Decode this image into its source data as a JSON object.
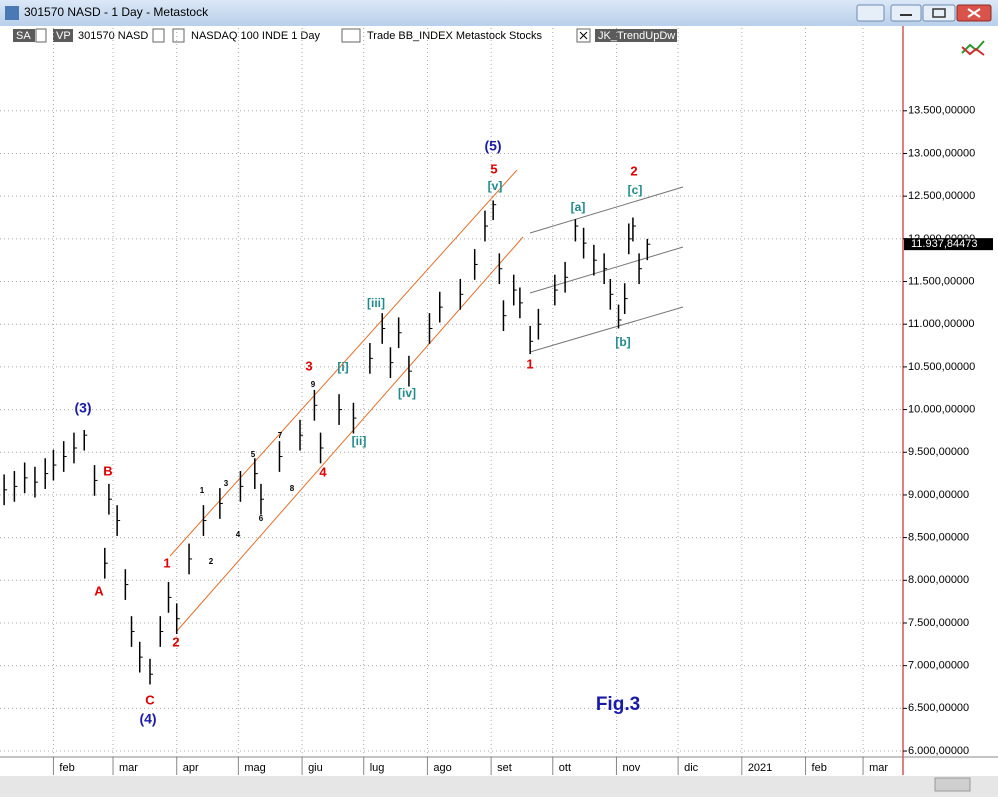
{
  "window_title": "301570 NASD - 1 Day - Metastock",
  "toolbar": {
    "badge_sa": "SA",
    "badge_vp": "VP",
    "symbol": "301570 NASD",
    "security": "NASDAQ 100 INDE  1 Day",
    "template": "Trade  BB_INDEX  Metastock  Stocks",
    "expert": "JK_TrendUpDw"
  },
  "chart_data": {
    "type": "ohlc",
    "xlim": [
      5,
      442
    ],
    "ylim": [
      5930,
      14470
    ],
    "grid": true,
    "xticks": [
      {
        "value": 31,
        "label": "feb"
      },
      {
        "value": 60,
        "label": "mar"
      },
      {
        "value": 91,
        "label": "apr"
      },
      {
        "value": 121,
        "label": "mag"
      },
      {
        "value": 152,
        "label": "giu"
      },
      {
        "value": 182,
        "label": "lug"
      },
      {
        "value": 213,
        "label": "ago"
      },
      {
        "value": 244,
        "label": "set"
      },
      {
        "value": 274,
        "label": "ott"
      },
      {
        "value": 305,
        "label": "nov"
      },
      {
        "value": 335,
        "label": "dic"
      },
      {
        "value": 366,
        "label": "2021"
      },
      {
        "value": 397,
        "label": "feb"
      },
      {
        "value": 425,
        "label": "mar"
      }
    ],
    "yticks": [
      {
        "value": 6000,
        "label": "6.000,00000"
      },
      {
        "value": 6500,
        "label": "6.500,00000"
      },
      {
        "value": 7000,
        "label": "7.000,00000"
      },
      {
        "value": 7500,
        "label": "7.500,00000"
      },
      {
        "value": 8000,
        "label": "8.000,00000"
      },
      {
        "value": 8500,
        "label": "8.500,00000"
      },
      {
        "value": 9000,
        "label": "9.000,00000"
      },
      {
        "value": 9500,
        "label": "9.500,00000"
      },
      {
        "value": 10000,
        "label": "10.000,00000"
      },
      {
        "value": 10500,
        "label": "10.500,00000"
      },
      {
        "value": 11000,
        "label": "11.000,00000"
      },
      {
        "value": 11500,
        "label": "11.500,00000"
      },
      {
        "value": 12000,
        "label": "12.000,00000"
      },
      {
        "value": 12500,
        "label": "12.500,00000"
      },
      {
        "value": 13000,
        "label": "13.000,00000"
      },
      {
        "value": 13500,
        "label": "13.500,00000"
      }
    ],
    "color": "#000000",
    "bars": {
      "x": [
        7,
        12,
        17,
        22,
        27,
        31,
        36,
        41,
        46,
        51,
        56,
        58,
        62,
        66,
        69,
        73,
        78,
        83,
        87,
        91,
        97,
        104,
        112,
        122,
        129,
        132,
        141,
        151,
        158,
        161,
        170,
        177,
        185,
        191,
        195,
        199,
        204,
        214,
        219,
        229,
        236,
        241,
        245,
        248,
        250,
        255,
        258,
        263,
        267,
        275,
        280,
        285,
        289,
        294,
        299,
        302,
        306,
        309,
        311,
        313,
        316,
        320
      ],
      "high": [
        9240,
        9280,
        9380,
        9330,
        9430,
        9530,
        9630,
        9730,
        9760,
        9350,
        8380,
        9130,
        8880,
        8130,
        7580,
        7280,
        7080,
        7580,
        7980,
        7730,
        8430,
        8880,
        9080,
        9280,
        9430,
        9130,
        9630,
        9880,
        10230,
        9730,
        10180,
        10080,
        10780,
        11130,
        10730,
        11080,
        10630,
        11130,
        11380,
        11530,
        11880,
        12330,
        12450,
        11830,
        11280,
        11580,
        11430,
        10980,
        11180,
        11580,
        11730,
        12230,
        12130,
        11930,
        11830,
        11530,
        11230,
        11480,
        12180,
        12250,
        11830,
        12000
      ],
      "low": [
        8880,
        8920,
        9020,
        8970,
        9070,
        9170,
        9270,
        9370,
        9520,
        8990,
        8020,
        8770,
        8520,
        7770,
        7220,
        6920,
        6780,
        7220,
        7620,
        7370,
        8070,
        8520,
        8720,
        8920,
        9070,
        8770,
        9270,
        9520,
        9870,
        9370,
        9820,
        9720,
        10420,
        10770,
        10370,
        10720,
        10270,
        10770,
        11020,
        11170,
        11520,
        11970,
        12220,
        11470,
        10920,
        11220,
        11070,
        10650,
        10820,
        11220,
        11370,
        11970,
        11770,
        11570,
        11470,
        11170,
        10950,
        11120,
        11820,
        11970,
        11470,
        11750
      ],
      "close": [
        9060,
        9100,
        9200,
        9150,
        9250,
        9350,
        9450,
        9550,
        9700,
        9170,
        8200,
        8950,
        8700,
        7950,
        7400,
        7100,
        6900,
        7400,
        7800,
        7550,
        8250,
        8700,
        8900,
        9100,
        9250,
        8950,
        9450,
        9700,
        10050,
        9550,
        10000,
        9900,
        10600,
        10950,
        10550,
        10900,
        10450,
        10950,
        11200,
        11350,
        11700,
        12150,
        12400,
        11650,
        11100,
        11400,
        11250,
        10800,
        11000,
        11400,
        11550,
        12150,
        11950,
        11750,
        11650,
        11350,
        11050,
        11300,
        12000,
        12150,
        11650,
        11937
      ]
    },
    "last_price": 11937.84473,
    "last_price_label": "11.937,84473",
    "wave_labels": [
      "(3)",
      "B",
      "A",
      "C",
      "(4)",
      "1",
      "2",
      "1",
      "2",
      "3",
      "4",
      "5",
      "6",
      "7",
      "8",
      "9",
      "3",
      "4",
      "[i]",
      "[ii]",
      "[iii]",
      "[iv]",
      "(5)",
      "5",
      "[v]",
      "1",
      "[a]",
      "[b]",
      "2",
      "[c]"
    ],
    "figure_label": "Fig.3"
  }
}
